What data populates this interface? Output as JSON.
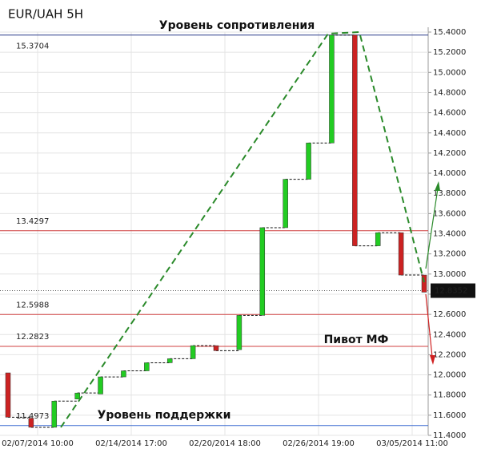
{
  "chart_data": {
    "type": "candlestick",
    "title": "EUR/UAH 5H",
    "annotations": [
      "Уровень сопротивления",
      "Уровень поддержки",
      "Пивот МФ"
    ],
    "candles": [
      {
        "open": 12.02,
        "close": 11.58
      },
      {
        "open": 11.57,
        "close": 11.48
      },
      {
        "open": 11.48,
        "close": 11.74
      },
      {
        "open": 11.76,
        "close": 11.82
      },
      {
        "open": 11.81,
        "close": 11.98
      },
      {
        "open": 11.98,
        "close": 12.04
      },
      {
        "open": 12.04,
        "close": 12.12
      },
      {
        "open": 12.12,
        "close": 12.16
      },
      {
        "open": 12.16,
        "close": 12.29
      },
      {
        "open": 12.29,
        "close": 12.24
      },
      {
        "open": 12.25,
        "close": 12.59
      },
      {
        "open": 12.59,
        "close": 13.46
      },
      {
        "open": 13.46,
        "close": 13.94
      },
      {
        "open": 13.94,
        "close": 14.3
      },
      {
        "open": 14.3,
        "close": 15.37
      },
      {
        "open": 15.37,
        "close": 13.28
      },
      {
        "open": 13.28,
        "close": 13.41
      },
      {
        "open": 13.41,
        "close": 12.99
      },
      {
        "open": 12.99,
        "close": 12.82
      }
    ],
    "up_color": "#22cc22",
    "down_color": "#cc2222",
    "xtick_labels": [
      "02/07/2014 10:00",
      "02/14/2014 17:00",
      "02/20/2014 18:00",
      "02/26/2014 19:00",
      "03/05/2014 11:00"
    ],
    "levels": [
      {
        "value": 15.3704,
        "color": "#2a3a8a"
      },
      {
        "value": 13.4297,
        "color": "#d04040"
      },
      {
        "value": 12.5988,
        "color": "#d04040"
      },
      {
        "value": 12.2823,
        "color": "#d04040"
      },
      {
        "value": 11.4973,
        "color": "#3a6ad0"
      }
    ],
    "last_price": 12.8352,
    "ylim": [
      11.4,
      15.4
    ],
    "yticks": [
      {
        "value": 11.4,
        "label": "11.4000"
      },
      {
        "value": 11.6,
        "label": "11.6000"
      },
      {
        "value": 11.8,
        "label": "11.8000"
      },
      {
        "value": 12.0,
        "label": "12.0000"
      },
      {
        "value": 12.2,
        "label": "12.2000"
      },
      {
        "value": 12.4,
        "label": "12.4000"
      },
      {
        "value": 12.6,
        "label": "12.6000"
      },
      {
        "value": 12.8,
        "label": "12.8000"
      },
      {
        "value": 13.0,
        "label": "13.0000"
      },
      {
        "value": 13.2,
        "label": "13.2000"
      },
      {
        "value": 13.4,
        "label": "13.4000"
      },
      {
        "value": 13.6,
        "label": "13.6000"
      },
      {
        "value": 13.8,
        "label": "13.8000"
      },
      {
        "value": 14.0,
        "label": "14.0000"
      },
      {
        "value": 14.2,
        "label": "14.2000"
      },
      {
        "value": 14.4,
        "label": "14.4000"
      },
      {
        "value": 14.6,
        "label": "14.6000"
      },
      {
        "value": 14.8,
        "label": "14.8000"
      },
      {
        "value": 15.0,
        "label": "15.0000"
      },
      {
        "value": 15.2,
        "label": "15.2000"
      },
      {
        "value": 15.4,
        "label": "15.4000"
      }
    ],
    "grid": true
  }
}
